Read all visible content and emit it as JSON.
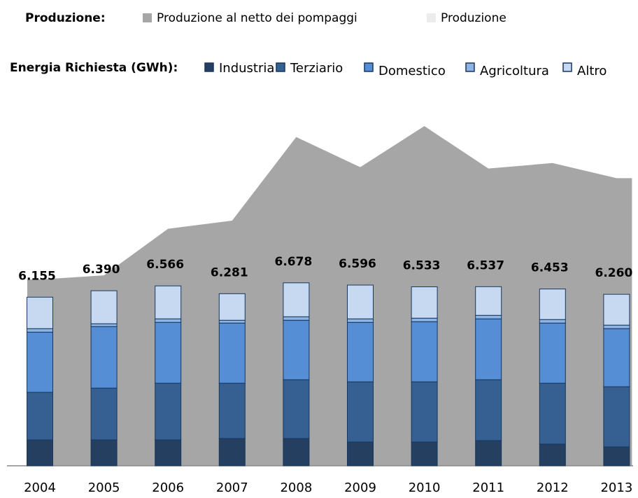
{
  "chart_data": {
    "type": "stacked-bar-area",
    "legend_labels": {
      "production": "Produzione:",
      "demand": "Energia Richiesta  (GWh):"
    },
    "categories": [
      "2004",
      "2005",
      "2006",
      "2007",
      "2008",
      "2009",
      "2010",
      "2011",
      "2012",
      "2013"
    ],
    "area_series": [
      {
        "name": "Produzione al netto dei pompaggi",
        "color": "#a6a6a6",
        "values": [
          6800,
          6950,
          8650,
          8950,
          12000,
          10900,
          12400,
          10850,
          11050,
          10500
        ]
      },
      {
        "name": "Produzione",
        "color": "#ececec",
        "values": [
          null,
          null,
          null,
          null,
          null,
          null,
          null,
          null,
          null,
          null
        ]
      }
    ],
    "series": [
      {
        "name": "Industria",
        "color": "#243f60",
        "values": [
          945,
          945,
          945,
          996,
          996,
          868,
          868,
          919,
          792,
          690
        ]
      },
      {
        "name": "Terziario",
        "color": "#366092",
        "values": [
          1737,
          1890,
          2069,
          2018,
          2145,
          2196,
          2196,
          2222,
          2222,
          2196
        ]
      },
      {
        "name": "Domestico",
        "color": "#558ed5",
        "values": [
          2196,
          2247,
          2222,
          2196,
          2171,
          2171,
          2196,
          2222,
          2196,
          2120
        ]
      },
      {
        "name": "Agricoltura",
        "color": "#8eb4e3",
        "values": [
          128,
          102,
          128,
          102,
          128,
          128,
          128,
          128,
          128,
          128
        ]
      },
      {
        "name": "Altro",
        "color": "#c6d9f1",
        "values": [
          1149,
          1206,
          1202,
          969,
          1238,
          1233,
          1145,
          1046,
          1115,
          1126
        ]
      }
    ],
    "totals": {
      "values": [
        6155,
        6390,
        6566,
        6281,
        6678,
        6596,
        6533,
        6537,
        6453,
        6260
      ],
      "value_labels": [
        "6.155",
        "6.390",
        "6.566",
        "6.281",
        "6.678",
        "6.596",
        "6.533",
        "6.537",
        "6.453",
        "6.260"
      ]
    }
  }
}
